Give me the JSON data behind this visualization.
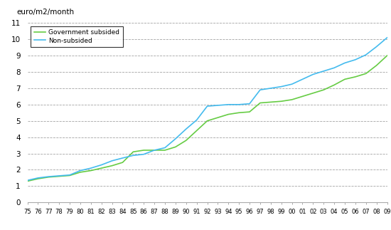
{
  "years": [
    1975,
    1976,
    1977,
    1978,
    1979,
    1980,
    1981,
    1982,
    1983,
    1984,
    1985,
    1986,
    1987,
    1988,
    1989,
    1990,
    1991,
    1992,
    1993,
    1994,
    1995,
    1996,
    1997,
    1998,
    1999,
    2000,
    2001,
    2002,
    2003,
    2004,
    2005,
    2006,
    2007,
    2008,
    2009
  ],
  "gov_subsided": [
    1.3,
    1.45,
    1.55,
    1.6,
    1.65,
    1.85,
    1.95,
    2.1,
    2.25,
    2.45,
    3.1,
    3.2,
    3.2,
    3.2,
    3.4,
    3.8,
    4.4,
    5.0,
    5.2,
    5.4,
    5.5,
    5.55,
    6.1,
    6.15,
    6.2,
    6.3,
    6.5,
    6.7,
    6.9,
    7.2,
    7.55,
    7.7,
    7.9,
    8.4,
    9.0
  ],
  "non_subsided": [
    1.35,
    1.5,
    1.58,
    1.63,
    1.68,
    1.95,
    2.1,
    2.3,
    2.55,
    2.72,
    2.88,
    2.95,
    3.2,
    3.35,
    3.9,
    4.5,
    5.05,
    5.9,
    5.95,
    6.0,
    6.0,
    6.05,
    6.9,
    7.0,
    7.1,
    7.25,
    7.55,
    7.85,
    8.05,
    8.25,
    8.55,
    8.75,
    9.05,
    9.55,
    10.1
  ],
  "gov_color": "#66cc44",
  "non_color": "#44bbee",
  "ylabel": "euro/m2/month",
  "ylim": [
    0,
    11
  ],
  "yticks": [
    0,
    1,
    2,
    3,
    4,
    5,
    6,
    7,
    8,
    9,
    10,
    11
  ],
  "xtick_labels": [
    "75",
    "76",
    "77",
    "78",
    "79",
    "80",
    "81",
    "82",
    "83",
    "84",
    "85",
    "86",
    "87",
    "88",
    "89",
    "90",
    "91",
    "92",
    "93",
    "94",
    "95",
    "96",
    "97",
    "98",
    "99",
    "00",
    "01",
    "02",
    "03",
    "04",
    "05",
    "06",
    "07",
    "08",
    "09"
  ],
  "legend_gov": "Government subsided",
  "legend_non": "Non-subsided",
  "background_color": "#ffffff",
  "grid_color": "#999999",
  "line_width": 1.2
}
